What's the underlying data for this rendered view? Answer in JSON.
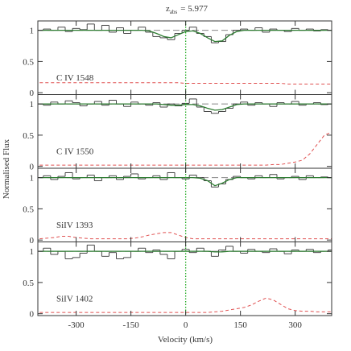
{
  "figure": {
    "title_main": "z",
    "title_sub": "abs",
    "title_rest": "= 5.977",
    "x_label": "Velocity (km/s)",
    "y_label": "Normalised Flux",
    "continuum": 1,
    "continuum_color": "#888888",
    "marker_velocity": 0,
    "marker_color": "#22aa22"
  },
  "chart_data": [
    {
      "type": "spectrum",
      "label": "C IV 1548",
      "x": [
        -400,
        -380,
        -360,
        -340,
        -320,
        -300,
        -280,
        -260,
        -240,
        -220,
        -200,
        -180,
        -160,
        -140,
        -120,
        -100,
        -80,
        -60,
        -40,
        -20,
        0,
        20,
        40,
        60,
        80,
        100,
        120,
        140,
        160,
        180,
        200,
        220,
        240,
        260,
        280,
        300,
        320,
        340,
        360,
        380,
        400
      ],
      "flux": [
        1.0,
        1.02,
        1.0,
        1.05,
        0.98,
        1.03,
        1.01,
        1.1,
        1.0,
        1.08,
        0.97,
        1.04,
        0.95,
        1.0,
        1.05,
        0.97,
        0.9,
        0.88,
        0.85,
        0.95,
        1.0,
        1.05,
        0.95,
        0.9,
        0.8,
        0.82,
        0.93,
        1.0,
        1.02,
        1.0,
        1.04,
        0.97,
        1.02,
        1.0,
        0.98,
        1.03,
        1.0,
        1.02,
        0.99,
        1.01,
        1.0
      ],
      "model": [
        1,
        1,
        1,
        1,
        1,
        1,
        1,
        1,
        1,
        1,
        1,
        1,
        1,
        1,
        1,
        0.99,
        0.95,
        0.9,
        0.88,
        0.93,
        0.98,
        0.99,
        0.95,
        0.88,
        0.82,
        0.83,
        0.92,
        0.98,
        1,
        1,
        1,
        1,
        1,
        1,
        1,
        1,
        1,
        1,
        1,
        1,
        1
      ],
      "error": [
        0.16,
        0.16,
        0.16,
        0.16,
        0.16,
        0.16,
        0.16,
        0.16,
        0.16,
        0.16,
        0.16,
        0.16,
        0.16,
        0.16,
        0.16,
        0.16,
        0.16,
        0.16,
        0.16,
        0.16,
        0.15,
        0.15,
        0.15,
        0.15,
        0.15,
        0.15,
        0.15,
        0.15,
        0.15,
        0.15,
        0.15,
        0.15,
        0.15,
        0.15,
        0.14,
        0.14,
        0.14,
        0.14,
        0.14,
        0.14,
        0.14
      ],
      "flux_color": "#333333",
      "model_color": "#2e7d32",
      "error_color": "#e05050",
      "xlim": [
        -405,
        400
      ],
      "ylim": [
        -0.03,
        1.15
      ],
      "xticks": [
        -300,
        -150,
        0,
        150,
        300
      ],
      "yticks": [
        0,
        0.5,
        1
      ]
    },
    {
      "type": "spectrum",
      "label": "C IV 1550",
      "x": [
        -400,
        -380,
        -360,
        -340,
        -320,
        -300,
        -280,
        -260,
        -240,
        -220,
        -200,
        -180,
        -160,
        -140,
        -120,
        -100,
        -80,
        -60,
        -40,
        -20,
        0,
        20,
        40,
        60,
        80,
        100,
        120,
        140,
        160,
        180,
        200,
        220,
        240,
        260,
        280,
        300,
        320,
        340,
        360,
        380,
        400
      ],
      "flux": [
        1.0,
        0.98,
        1.03,
        1.0,
        1.05,
        1.02,
        0.97,
        1.0,
        1.04,
        0.98,
        1.06,
        1.0,
        0.96,
        1.03,
        1.0,
        0.98,
        1.02,
        0.95,
        1.0,
        0.97,
        1.01,
        1.08,
        0.95,
        0.88,
        0.85,
        0.88,
        0.93,
        1.0,
        1.03,
        0.98,
        1.02,
        1.0,
        0.96,
        1.02,
        1.0,
        1.04,
        0.98,
        1.0,
        1.02,
        0.99,
        1.0
      ],
      "model": [
        1,
        1,
        1,
        1,
        1,
        1,
        1,
        1,
        1,
        1,
        1,
        1,
        1,
        1,
        1,
        1,
        1,
        0.99,
        0.98,
        0.98,
        0.99,
        0.99,
        0.97,
        0.93,
        0.9,
        0.91,
        0.95,
        0.99,
        1,
        1,
        1,
        1,
        1,
        1,
        1,
        1,
        1,
        1,
        1,
        1,
        1
      ],
      "error": [
        0.02,
        0.02,
        0.02,
        0.02,
        0.02,
        0.02,
        0.02,
        0.02,
        0.02,
        0.02,
        0.02,
        0.02,
        0.02,
        0.02,
        0.02,
        0.02,
        0.02,
        0.02,
        0.02,
        0.02,
        0.02,
        0.02,
        0.02,
        0.02,
        0.02,
        0.02,
        0.02,
        0.02,
        0.02,
        0.02,
        0.02,
        0.02,
        0.03,
        0.03,
        0.05,
        0.07,
        0.1,
        0.2,
        0.35,
        0.5,
        0.55
      ],
      "flux_color": "#333333",
      "model_color": "#2e7d32",
      "error_color": "#e05050",
      "xlim": [
        -405,
        400
      ],
      "ylim": [
        -0.03,
        1.15
      ],
      "xticks": [
        -300,
        -150,
        0,
        150,
        300
      ],
      "yticks": [
        0,
        0.5,
        1
      ]
    },
    {
      "type": "spectrum",
      "label": "SiIV 1393",
      "x": [
        -400,
        -380,
        -360,
        -340,
        -320,
        -300,
        -280,
        -260,
        -240,
        -220,
        -200,
        -180,
        -160,
        -140,
        -120,
        -100,
        -80,
        -60,
        -40,
        -20,
        0,
        20,
        40,
        60,
        80,
        100,
        120,
        140,
        160,
        180,
        200,
        220,
        240,
        260,
        280,
        300,
        320,
        340,
        360,
        380,
        400
      ],
      "flux": [
        1.0,
        1.03,
        0.97,
        1.02,
        1.08,
        0.98,
        1.0,
        1.04,
        0.95,
        1.0,
        1.03,
        0.97,
        1.02,
        1.06,
        0.98,
        1.0,
        1.03,
        0.97,
        1.08,
        1.0,
        0.98,
        1.04,
        1.0,
        0.95,
        0.85,
        0.9,
        0.97,
        1.02,
        1.0,
        0.98,
        1.03,
        1.0,
        1.05,
        0.98,
        1.0,
        1.02,
        0.97,
        1.03,
        1.0,
        1.01,
        1.0
      ],
      "model": [
        1,
        1,
        1,
        1,
        1,
        1,
        1,
        1,
        1,
        1,
        1,
        1,
        1,
        1,
        1,
        1,
        1,
        1,
        1,
        1,
        1,
        1,
        0.99,
        0.95,
        0.87,
        0.91,
        0.97,
        1,
        1,
        1,
        1,
        1,
        1,
        1,
        1,
        1,
        1,
        1,
        1,
        1,
        1
      ],
      "error": [
        0.02,
        0.03,
        0.04,
        0.06,
        0.06,
        0.04,
        0.03,
        0.02,
        0.02,
        0.02,
        0.02,
        0.02,
        0.02,
        0.03,
        0.05,
        0.08,
        0.1,
        0.12,
        0.12,
        0.08,
        0.04,
        0.02,
        0.02,
        0.02,
        0.02,
        0.02,
        0.02,
        0.02,
        0.02,
        0.02,
        0.02,
        0.02,
        0.02,
        0.02,
        0.02,
        0.02,
        0.02,
        0.02,
        0.02,
        0.02,
        0.02
      ],
      "flux_color": "#333333",
      "model_color": "#2e7d32",
      "error_color": "#e05050",
      "xlim": [
        -405,
        400
      ],
      "ylim": [
        -0.03,
        1.15
      ],
      "xticks": [
        -300,
        -150,
        0,
        150,
        300
      ],
      "yticks": [
        0,
        0.5,
        1
      ]
    },
    {
      "type": "spectrum",
      "label": "SiIV 1402",
      "x": [
        -400,
        -380,
        -360,
        -340,
        -320,
        -300,
        -280,
        -260,
        -240,
        -220,
        -200,
        -180,
        -160,
        -140,
        -120,
        -100,
        -80,
        -60,
        -40,
        -20,
        0,
        20,
        40,
        60,
        80,
        100,
        120,
        140,
        160,
        180,
        200,
        220,
        240,
        260,
        280,
        300,
        320,
        340,
        360,
        380,
        400
      ],
      "flux": [
        1.0,
        1.05,
        0.95,
        1.0,
        0.88,
        0.9,
        0.97,
        1.1,
        1.0,
        0.92,
        0.98,
        0.88,
        0.9,
        1.0,
        1.05,
        0.98,
        1.02,
        0.95,
        0.88,
        1.0,
        1.03,
        0.98,
        1.05,
        1.0,
        0.92,
        1.02,
        1.08,
        1.0,
        0.97,
        1.03,
        1.0,
        0.98,
        1.04,
        1.0,
        0.96,
        1.02,
        1.0,
        1.03,
        0.98,
        1.0,
        1.02
      ],
      "model": [
        1,
        1,
        1,
        1,
        1,
        1,
        1,
        1,
        1,
        1,
        1,
        1,
        1,
        1,
        1,
        1,
        1,
        1,
        1,
        1,
        1,
        1,
        1,
        1,
        0.99,
        0.99,
        1,
        1,
        1,
        1,
        1,
        1,
        1,
        1,
        1,
        1,
        1,
        1,
        1,
        1,
        1
      ],
      "error": [
        0.02,
        0.02,
        0.02,
        0.02,
        0.02,
        0.02,
        0.02,
        0.02,
        0.02,
        0.02,
        0.02,
        0.02,
        0.02,
        0.02,
        0.02,
        0.02,
        0.02,
        0.02,
        0.02,
        0.02,
        0.02,
        0.02,
        0.02,
        0.02,
        0.03,
        0.04,
        0.06,
        0.08,
        0.1,
        0.14,
        0.2,
        0.25,
        0.22,
        0.15,
        0.08,
        0.05,
        0.04,
        0.04,
        0.03,
        0.03,
        0.03
      ],
      "flux_color": "#333333",
      "model_color": "#2e7d32",
      "error_color": "#e05050",
      "xlim": [
        -405,
        400
      ],
      "ylim": [
        -0.03,
        1.15
      ],
      "xticks": [
        -300,
        -150,
        0,
        150,
        300
      ],
      "yticks": [
        0,
        0.5,
        1
      ]
    }
  ]
}
